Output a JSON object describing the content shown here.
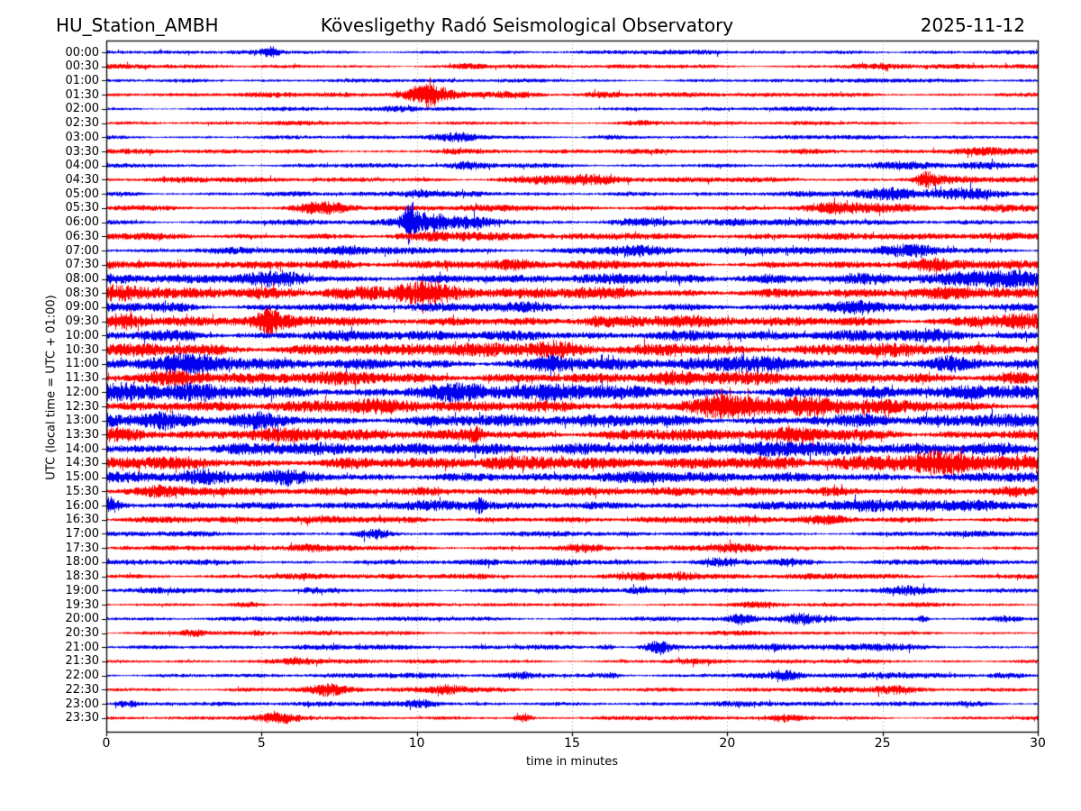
{
  "header": {
    "station": "HU_Station_AMBH",
    "observatory": "Kövesligethy Radó Seismological Observatory",
    "date": "2025-11-12"
  },
  "axes": {
    "xlabel": "time in minutes",
    "ylabel": "UTC (local time = UTC + 01:00)",
    "x_min": 0,
    "x_max": 30,
    "x_ticks": [
      0,
      5,
      10,
      15,
      20,
      25,
      30
    ],
    "x_gridlines": [
      5,
      10,
      15,
      20,
      25
    ],
    "grid_style": "dotted"
  },
  "colors": {
    "trace_blue": "#0000ee",
    "trace_red": "#ff0000",
    "grid": "#9a9a9a",
    "axis": "#000000",
    "background": "#ffffff"
  },
  "chart_data": {
    "type": "line",
    "subtype": "helicorder-day-plot",
    "title": "HU_Station_AMBH — Kövesligethy Radó Seismological Observatory — 2025-11-12",
    "x_units": "minutes",
    "row_duration_minutes": 30,
    "rows": [
      {
        "time": "00:00",
        "color": "blue",
        "amp": 1.5,
        "bursts": [
          [
            5.3,
            0.2,
            2.5
          ],
          [
            19.5,
            0.4,
            1.2
          ],
          [
            25.8,
            1.2,
            0.8
          ]
        ]
      },
      {
        "time": "00:30",
        "color": "red",
        "amp": 1.6,
        "bursts": [
          [
            11.7,
            0.4,
            1.3
          ],
          [
            25.5,
            1.5,
            1.3
          ]
        ]
      },
      {
        "time": "01:00",
        "color": "blue",
        "amp": 1.5,
        "bursts": [
          [
            4.0,
            1.0,
            0.5
          ],
          [
            23.0,
            0.5,
            0.8
          ]
        ]
      },
      {
        "time": "01:30",
        "color": "red",
        "amp": 1.8,
        "bursts": [
          [
            10.2,
            0.6,
            8.0
          ],
          [
            10.4,
            0.15,
            3.0
          ],
          [
            12.8,
            1.5,
            2.5
          ],
          [
            15.8,
            0.5,
            1.2
          ]
        ]
      },
      {
        "time": "02:00",
        "color": "blue",
        "amp": 1.5,
        "bursts": [
          [
            9.4,
            0.4,
            1.6
          ]
        ]
      },
      {
        "time": "02:30",
        "color": "red",
        "amp": 1.5,
        "bursts": [
          [
            13.0,
            0.4,
            0.8
          ],
          [
            17.2,
            0.3,
            0.8
          ]
        ]
      },
      {
        "time": "03:00",
        "color": "blue",
        "amp": 1.6,
        "bursts": [
          [
            11.4,
            0.5,
            2.0
          ],
          [
            16.0,
            0.5,
            1.0
          ]
        ]
      },
      {
        "time": "03:30",
        "color": "red",
        "amp": 1.8,
        "bursts": [
          [
            11.0,
            0.4,
            1.5
          ],
          [
            21.8,
            1.0,
            1.6
          ],
          [
            27.8,
            1.2,
            1.6
          ]
        ]
      },
      {
        "time": "04:00",
        "color": "blue",
        "amp": 1.8,
        "bursts": [
          [
            11.6,
            0.3,
            2.0
          ],
          [
            26.0,
            0.6,
            1.5
          ],
          [
            28.6,
            0.8,
            2.6
          ]
        ]
      },
      {
        "time": "04:30",
        "color": "red",
        "amp": 2.0,
        "bursts": [
          [
            14.6,
            1.4,
            3.0
          ],
          [
            26.4,
            0.25,
            4.5
          ],
          [
            27.8,
            1.2,
            2.2
          ]
        ]
      },
      {
        "time": "05:00",
        "color": "blue",
        "amp": 2.0,
        "bursts": [
          [
            10.0,
            0.3,
            2.0
          ],
          [
            25.2,
            0.7,
            2.6
          ],
          [
            27.2,
            1.2,
            4.2
          ]
        ]
      },
      {
        "time": "05:30",
        "color": "red",
        "amp": 2.2,
        "bursts": [
          [
            6.9,
            0.7,
            3.6
          ],
          [
            23.6,
            1.1,
            2.6
          ],
          [
            29.3,
            0.7,
            2.0
          ]
        ]
      },
      {
        "time": "06:00",
        "color": "blue",
        "amp": 2.2,
        "bursts": [
          [
            9.75,
            0.12,
            12.0
          ],
          [
            10.1,
            0.5,
            6.0
          ],
          [
            11.8,
            1.0,
            2.6
          ],
          [
            17.6,
            0.9,
            2.2
          ],
          [
            20.4,
            0.8,
            2.0
          ]
        ]
      },
      {
        "time": "06:30",
        "color": "red",
        "amp": 2.6,
        "bursts": [
          [
            10.5,
            0.8,
            2.4
          ],
          [
            16.6,
            0.4,
            1.6
          ],
          [
            21.4,
            0.8,
            2.0
          ]
        ]
      },
      {
        "time": "07:00",
        "color": "blue",
        "amp": 2.6,
        "bursts": [
          [
            7.8,
            0.4,
            2.6
          ],
          [
            16.8,
            0.8,
            3.6
          ],
          [
            25.7,
            0.9,
            4.6
          ]
        ]
      },
      {
        "time": "07:30",
        "color": "red",
        "amp": 3.2,
        "bursts": [
          [
            7.1,
            0.8,
            4.0
          ],
          [
            13.2,
            0.5,
            2.0
          ],
          [
            26.4,
            0.6,
            2.6
          ]
        ]
      },
      {
        "time": "08:00",
        "color": "blue",
        "amp": 3.6,
        "bursts": [
          [
            5.8,
            0.9,
            3.0
          ],
          [
            21.0,
            0.5,
            2.0
          ],
          [
            25.0,
            0.9,
            4.6
          ],
          [
            28.6,
            1.1,
            3.6
          ]
        ]
      },
      {
        "time": "08:30",
        "color": "red",
        "amp": 4.2,
        "bursts": [
          [
            0.8,
            0.8,
            4.0
          ],
          [
            7.4,
            1.6,
            4.6
          ],
          [
            10.2,
            0.7,
            4.2
          ]
        ]
      },
      {
        "time": "09:00",
        "color": "blue",
        "amp": 3.2,
        "bursts": [
          [
            2.0,
            1.0,
            2.0
          ],
          [
            14.0,
            0.5,
            1.6
          ],
          [
            24.0,
            0.6,
            1.6
          ]
        ]
      },
      {
        "time": "09:30",
        "color": "red",
        "amp": 4.2,
        "bursts": [
          [
            0.6,
            0.5,
            3.0
          ],
          [
            5.2,
            0.25,
            5.5
          ],
          [
            15.6,
            0.5,
            2.0
          ],
          [
            28.4,
            1.2,
            3.0
          ]
        ]
      },
      {
        "time": "10:00",
        "color": "blue",
        "amp": 3.8,
        "bursts": [
          [
            2.0,
            0.8,
            2.0
          ],
          [
            17.6,
            1.0,
            2.6
          ],
          [
            27.0,
            0.8,
            2.0
          ]
        ]
      },
      {
        "time": "10:30",
        "color": "red",
        "amp": 4.6,
        "bursts": [
          [
            3.0,
            0.8,
            3.0
          ],
          [
            10.1,
            0.4,
            2.6
          ],
          [
            14.9,
            0.8,
            3.0
          ],
          [
            18.3,
            0.8,
            3.6
          ]
        ]
      },
      {
        "time": "11:00",
        "color": "blue",
        "amp": 4.6,
        "bursts": [
          [
            1.9,
            1.1,
            3.0
          ],
          [
            14.3,
            0.4,
            4.0
          ],
          [
            20.6,
            0.8,
            2.6
          ],
          [
            23.1,
            0.5,
            3.0
          ],
          [
            27.2,
            0.5,
            3.0
          ]
        ]
      },
      {
        "time": "11:30",
        "color": "red",
        "amp": 4.6,
        "bursts": [
          [
            2.0,
            1.0,
            2.0
          ],
          [
            17.0,
            1.0,
            2.0
          ],
          [
            29.0,
            0.8,
            3.0
          ]
        ]
      },
      {
        "time": "12:00",
        "color": "blue",
        "amp": 5.0,
        "bursts": [
          [
            2.6,
            1.4,
            4.6
          ],
          [
            11.0,
            0.8,
            2.0
          ],
          [
            14.6,
            0.8,
            3.6
          ]
        ]
      },
      {
        "time": "12:30",
        "color": "red",
        "amp": 5.0,
        "bursts": [
          [
            20.2,
            1.4,
            4.2
          ],
          [
            23.2,
            0.8,
            3.0
          ]
        ]
      },
      {
        "time": "13:00",
        "color": "blue",
        "amp": 4.6,
        "bursts": [
          [
            2.0,
            0.5,
            3.6
          ],
          [
            5.0,
            0.6,
            3.6
          ],
          [
            24.6,
            0.5,
            2.6
          ]
        ]
      },
      {
        "time": "13:30",
        "color": "red",
        "amp": 4.6,
        "bursts": [
          [
            0.6,
            0.5,
            3.0
          ],
          [
            11.85,
            0.2,
            4.6
          ],
          [
            22.0,
            0.5,
            2.0
          ]
        ]
      },
      {
        "time": "14:00",
        "color": "blue",
        "amp": 4.6,
        "bursts": [
          [
            14.6,
            1.2,
            3.0
          ],
          [
            21.5,
            0.6,
            2.6
          ],
          [
            27.1,
            1.2,
            3.6
          ]
        ]
      },
      {
        "time": "14:30",
        "color": "red",
        "amp": 5.0,
        "bursts": [
          [
            17.0,
            0.5,
            2.0
          ],
          [
            21.6,
            1.5,
            3.0
          ],
          [
            27.6,
            1.5,
            3.6
          ]
        ]
      },
      {
        "time": "15:00",
        "color": "blue",
        "amp": 4.0,
        "bursts": [
          [
            3.0,
            0.5,
            3.0
          ],
          [
            5.8,
            0.5,
            2.0
          ],
          [
            21.4,
            0.5,
            2.0
          ]
        ]
      },
      {
        "time": "15:30",
        "color": "red",
        "amp": 3.2,
        "bursts": [
          [
            1.5,
            0.5,
            1.6
          ],
          [
            10.9,
            0.8,
            4.2
          ],
          [
            23.3,
            0.7,
            3.6
          ],
          [
            29.2,
            0.5,
            2.2
          ]
        ]
      },
      {
        "time": "16:00",
        "color": "blue",
        "amp": 3.4,
        "bursts": [
          [
            0.15,
            0.2,
            5.0
          ],
          [
            3.2,
            0.4,
            2.0
          ],
          [
            12.0,
            0.15,
            4.5
          ],
          [
            25.2,
            0.8,
            3.0
          ],
          [
            28.1,
            0.5,
            2.6
          ]
        ]
      },
      {
        "time": "16:30",
        "color": "red",
        "amp": 2.6,
        "bursts": [
          [
            10.0,
            0.5,
            1.0
          ],
          [
            23.0,
            0.6,
            2.6
          ]
        ]
      },
      {
        "time": "17:00",
        "color": "blue",
        "amp": 1.9,
        "bursts": [
          [
            8.7,
            0.4,
            3.2
          ],
          [
            28.5,
            0.6,
            1.2
          ]
        ]
      },
      {
        "time": "17:30",
        "color": "red",
        "amp": 2.1,
        "bursts": [
          [
            0.5,
            0.25,
            2.0
          ],
          [
            6.3,
            0.4,
            2.0
          ],
          [
            15.4,
            0.6,
            2.4
          ],
          [
            20.0,
            0.6,
            1.2
          ]
        ]
      },
      {
        "time": "18:00",
        "color": "blue",
        "amp": 2.1,
        "bursts": [
          [
            12.2,
            0.3,
            1.6
          ],
          [
            19.7,
            0.6,
            3.2
          ],
          [
            21.9,
            0.5,
            2.8
          ]
        ]
      },
      {
        "time": "18:30",
        "color": "red",
        "amp": 2.1,
        "bursts": [
          [
            16.3,
            0.8,
            2.8
          ],
          [
            18.5,
            0.4,
            2.6
          ],
          [
            29.5,
            0.4,
            1.6
          ]
        ]
      },
      {
        "time": "19:00",
        "color": "blue",
        "amp": 1.9,
        "bursts": [
          [
            6.6,
            0.3,
            1.6
          ],
          [
            17.1,
            0.25,
            2.6
          ],
          [
            25.5,
            0.7,
            2.6
          ]
        ]
      },
      {
        "time": "19:30",
        "color": "red",
        "amp": 1.6,
        "bursts": [
          [
            4.6,
            0.3,
            1.6
          ],
          [
            21.0,
            0.4,
            1.0
          ]
        ]
      },
      {
        "time": "20:00",
        "color": "blue",
        "amp": 1.9,
        "bursts": [
          [
            20.4,
            0.3,
            3.0
          ],
          [
            22.3,
            0.4,
            2.6
          ],
          [
            26.3,
            0.12,
            3.4
          ],
          [
            29.0,
            0.3,
            1.6
          ]
        ]
      },
      {
        "time": "20:30",
        "color": "red",
        "amp": 1.6,
        "bursts": [
          [
            2.8,
            0.3,
            2.6
          ],
          [
            4.9,
            0.2,
            1.6
          ]
        ]
      },
      {
        "time": "21:00",
        "color": "blue",
        "amp": 1.9,
        "bursts": [
          [
            13.9,
            0.4,
            2.0
          ],
          [
            16.1,
            0.2,
            5.4
          ],
          [
            17.75,
            0.3,
            5.8
          ],
          [
            21.6,
            0.4,
            2.0
          ],
          [
            24.6,
            0.8,
            1.6
          ]
        ]
      },
      {
        "time": "21:30",
        "color": "red",
        "amp": 1.6,
        "bursts": [
          [
            6.2,
            0.5,
            1.2
          ],
          [
            10.0,
            0.4,
            1.0
          ],
          [
            19.0,
            0.5,
            0.8
          ]
        ]
      },
      {
        "time": "22:00",
        "color": "blue",
        "amp": 1.9,
        "bursts": [
          [
            13.4,
            0.5,
            2.2
          ],
          [
            16.3,
            0.3,
            2.0
          ],
          [
            21.9,
            0.3,
            3.0
          ],
          [
            25.1,
            0.5,
            1.6
          ],
          [
            29.0,
            0.4,
            2.4
          ]
        ]
      },
      {
        "time": "22:30",
        "color": "red",
        "amp": 1.9,
        "bursts": [
          [
            7.2,
            0.5,
            3.4
          ],
          [
            11.0,
            0.4,
            2.6
          ],
          [
            25.3,
            0.5,
            2.8
          ]
        ]
      },
      {
        "time": "23:00",
        "color": "blue",
        "amp": 1.9,
        "bursts": [
          [
            0.55,
            0.25,
            5.6
          ],
          [
            10.3,
            0.4,
            2.6
          ],
          [
            27.7,
            0.5,
            2.6
          ]
        ]
      },
      {
        "time": "23:30",
        "color": "red",
        "amp": 1.6,
        "bursts": [
          [
            5.6,
            0.5,
            2.0
          ],
          [
            13.45,
            0.18,
            4.6
          ],
          [
            21.9,
            0.4,
            1.6
          ]
        ]
      }
    ]
  }
}
